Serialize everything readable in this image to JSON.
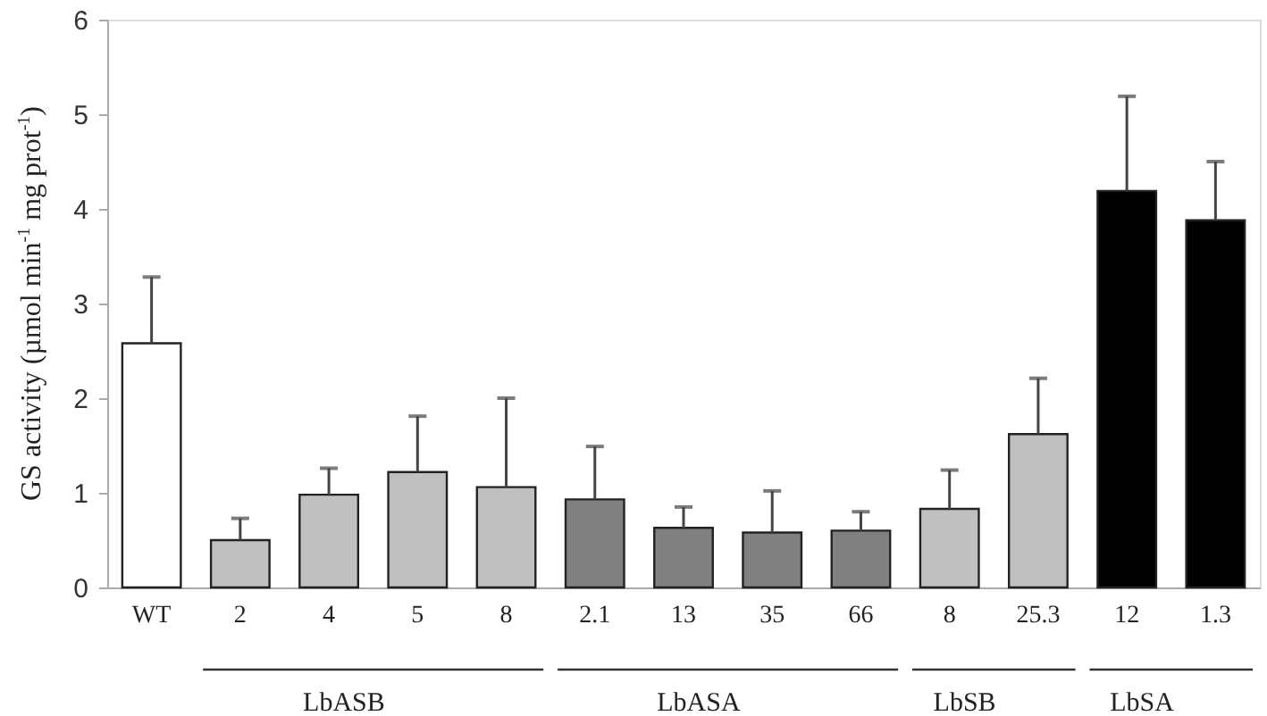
{
  "chart_data": {
    "type": "bar",
    "ylabel": "GS activity (µmol min$^{-1}$ mg prot$^{-1}$)",
    "categories": [
      "WT",
      "2",
      "4",
      "5",
      "8",
      "2.1",
      "13",
      "35",
      "66",
      "8",
      "25.3",
      "12",
      "1.3"
    ],
    "values": [
      2.58,
      0.5,
      0.98,
      1.22,
      1.06,
      0.93,
      0.63,
      0.58,
      0.6,
      0.83,
      1.62,
      4.19,
      3.88
    ],
    "errors": [
      [
        2.58,
        3.28
      ],
      [
        0.5,
        0.73
      ],
      [
        0.98,
        1.26
      ],
      [
        1.22,
        1.81
      ],
      [
        1.06,
        2.0
      ],
      [
        0.93,
        1.49
      ],
      [
        0.63,
        0.85
      ],
      [
        0.58,
        1.02
      ],
      [
        0.6,
        0.8
      ],
      [
        0.83,
        1.24
      ],
      [
        1.62,
        2.21
      ],
      [
        4.19,
        5.19
      ],
      [
        3.88,
        4.5
      ]
    ],
    "colors": [
      "#ffffff",
      "#c0c0c0",
      "#c0c0c0",
      "#c0c0c0",
      "#c0c0c0",
      "#808080",
      "#808080",
      "#808080",
      "#808080",
      "#c0c0c0",
      "#c0c0c0",
      "#000000",
      "#000000"
    ],
    "ylim": [
      0,
      6
    ],
    "yticks": [
      0,
      1,
      2,
      3,
      4,
      5,
      6
    ],
    "annotations": [
      "LbASB",
      "LbASA",
      "LbSB",
      "LbSA"
    ]
  }
}
